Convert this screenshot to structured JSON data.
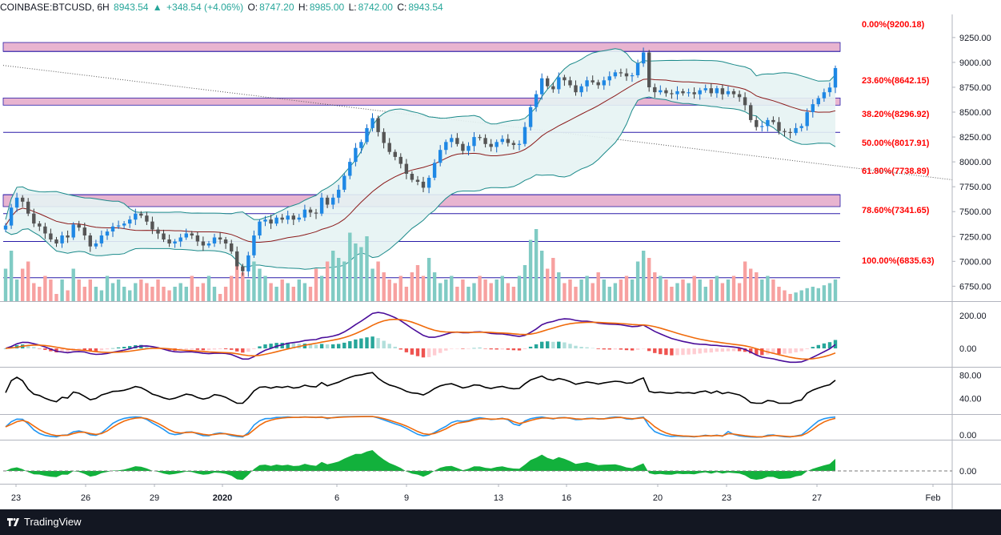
{
  "header": {
    "symbol": "COINBASE:BTCUSD, 6H",
    "last": "8943.54",
    "change": "+348.54 (+4.06%)",
    "open_label": "O:",
    "open": "8747.20",
    "high_label": "H:",
    "high": "8985.00",
    "low_label": "L:",
    "low": "8742.00",
    "close_label": "C:",
    "close": "8943.54"
  },
  "footer": {
    "brand": "TradingView"
  },
  "colors": {
    "up": "#26a69a",
    "down": "#ef5350",
    "vol_up": "#80cbc4",
    "vol_down": "#f7a1a0",
    "fib_zone": "#e8b4d0",
    "fib_line": "#2a1ca8",
    "fib_label": "#ff0000",
    "bb_line": "#1b8a8a",
    "bb_mid": "#8b1a1a",
    "bb_fill": "#e6f3f3",
    "macd": "#4a0d9a",
    "signal": "#f06a0a",
    "rsi": "#000000",
    "stoch_k": "#2196f3",
    "stoch_d": "#f06a0a",
    "osc_fill": "#12b13c",
    "trend": "#555555"
  },
  "chart_data": {
    "type": "candlestick",
    "symbol": "BTCUSD",
    "timeframe": "6H",
    "x_ticks": [
      "23",
      "26",
      "29",
      "2020",
      "6",
      "9",
      "13",
      "16",
      "20",
      "23",
      "27",
      "Feb"
    ],
    "y_ticks": [
      "9250.00",
      "9000.00",
      "8750.00",
      "8500.00",
      "8250.00",
      "8000.00",
      "7750.00",
      "7500.00",
      "7250.00",
      "7000.00",
      "6750.00"
    ],
    "ylim": [
      6600,
      9450
    ],
    "fib_levels": [
      {
        "label": "0.00%(9200.18)",
        "price": 9200.18
      },
      {
        "label": "23.60%(8642.15)",
        "price": 8642.15
      },
      {
        "label": "38.20%(8296.92)",
        "price": 8296.92
      },
      {
        "label": "50.00%(8017.91)",
        "price": 8017.91
      },
      {
        "label": "61.80%(7738.89)",
        "price": 7738.89
      },
      {
        "label": "78.60%(7341.65)",
        "price": 7341.65
      },
      {
        "label": "100.00%(6835.63)",
        "price": 6835.63
      }
    ],
    "fib_zones": [
      [
        9110,
        9200
      ],
      [
        8570,
        8642
      ],
      [
        7550,
        7670
      ]
    ],
    "fib_line_prices": [
      9110,
      8296.92,
      7670,
      7480,
      7200,
      6835.63
    ],
    "trendline": {
      "start": 8970,
      "end": 7820
    },
    "close_prices": [
      7360,
      7540,
      7640,
      7600,
      7480,
      7380,
      7350,
      7280,
      7220,
      7180,
      7260,
      7240,
      7370,
      7340,
      7260,
      7150,
      7180,
      7260,
      7300,
      7350,
      7360,
      7380,
      7420,
      7480,
      7460,
      7400,
      7320,
      7280,
      7220,
      7180,
      7200,
      7240,
      7280,
      7260,
      7200,
      7160,
      7180,
      7240,
      7220,
      7180,
      7100,
      6950,
      6900,
      7060,
      7260,
      7400,
      7420,
      7380,
      7440,
      7420,
      7460,
      7420,
      7440,
      7520,
      7490,
      7480,
      7640,
      7570,
      7640,
      7720,
      7860,
      8000,
      8140,
      8200,
      8340,
      8440,
      8300,
      8190,
      8100,
      8050,
      7980,
      7880,
      7820,
      7800,
      7740,
      7840,
      7990,
      8120,
      8200,
      8240,
      8180,
      8110,
      8160,
      8250,
      8240,
      8180,
      8150,
      8200,
      8230,
      8190,
      8170,
      8180,
      8350,
      8550,
      8680,
      8840,
      8760,
      8730,
      8850,
      8820,
      8770,
      8700,
      8760,
      8820,
      8800,
      8770,
      8820,
      8860,
      8900,
      8890,
      8860,
      8870,
      8990,
      9100,
      8750,
      8700,
      8720,
      8690,
      8680,
      8710,
      8690,
      8700,
      8680,
      8720,
      8740,
      8690,
      8740,
      8680,
      8710,
      8680,
      8650,
      8570,
      8420,
      8350,
      8360,
      8420,
      8400,
      8310,
      8300,
      8290,
      8340,
      8360,
      8500,
      8580,
      8640,
      8700,
      8747,
      8943
    ],
    "volumes": [
      0.45,
      0.7,
      0.3,
      0.45,
      0.55,
      0.25,
      0.2,
      0.35,
      0.3,
      0.1,
      0.3,
      0.15,
      0.45,
      0.3,
      0.2,
      0.3,
      0.2,
      0.15,
      0.35,
      0.25,
      0.3,
      0.2,
      0.15,
      0.25,
      0.3,
      0.25,
      0.2,
      0.3,
      0.2,
      0.15,
      0.2,
      0.25,
      0.2,
      0.35,
      0.2,
      0.25,
      0.35,
      0.2,
      0.1,
      0.2,
      0.35,
      0.55,
      0.4,
      0.3,
      0.55,
      0.45,
      0.35,
      0.25,
      0.2,
      0.3,
      0.25,
      0.2,
      0.3,
      0.25,
      0.2,
      0.45,
      0.35,
      0.55,
      0.7,
      0.6,
      0.55,
      0.95,
      0.8,
      0.75,
      0.9,
      0.45,
      0.55,
      0.4,
      0.3,
      0.25,
      0.35,
      0.2,
      0.4,
      0.5,
      0.35,
      0.6,
      0.4,
      0.25,
      0.3,
      0.35,
      0.2,
      0.3,
      0.2,
      0.25,
      0.35,
      0.3,
      0.25,
      0.3,
      0.35,
      0.25,
      0.2,
      0.35,
      0.5,
      0.85,
      1.0,
      0.7,
      0.45,
      0.6,
      0.4,
      0.25,
      0.3,
      0.2,
      0.3,
      0.35,
      0.25,
      0.4,
      0.3,
      0.2,
      0.25,
      0.3,
      0.35,
      0.3,
      0.55,
      0.7,
      0.6,
      0.4,
      0.35,
      0.3,
      0.2,
      0.25,
      0.3,
      0.25,
      0.35,
      0.3,
      0.2,
      0.3,
      0.35,
      0.25,
      0.3,
      0.35,
      0.25,
      0.55,
      0.45,
      0.4,
      0.3,
      0.35,
      0.3,
      0.2,
      0.15,
      0.1,
      0.12,
      0.15,
      0.18,
      0.2,
      0.18,
      0.22,
      0.25,
      0.3
    ],
    "panes": [
      {
        "name": "macd",
        "y_ticks": [
          "200.00",
          "0.00"
        ]
      },
      {
        "name": "rsi",
        "y_ticks": [
          "80.00",
          "40.00"
        ]
      },
      {
        "name": "stochastic",
        "y_ticks": [
          "0.00"
        ]
      },
      {
        "name": "oscillator",
        "y_ticks": [
          "0.00"
        ]
      }
    ]
  }
}
